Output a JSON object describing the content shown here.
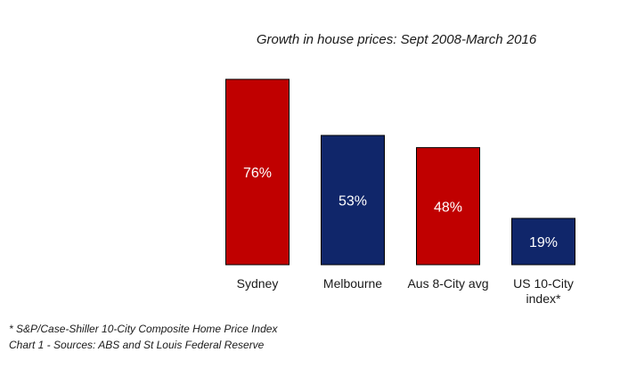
{
  "chart_data": {
    "type": "bar",
    "title": "Growth in house prices: Sept 2008-March 2016",
    "categories": [
      [
        "Sydney"
      ],
      [
        "Melbourne"
      ],
      [
        "Aus 8-City avg"
      ],
      [
        "US 10-City",
        "index*"
      ]
    ],
    "values": [
      76,
      53,
      48,
      19
    ],
    "value_labels": [
      "76%",
      "53%",
      "48%",
      "19%"
    ],
    "unit": "%",
    "colors": [
      "#c00000",
      "#10266a",
      "#c00000",
      "#10266a"
    ],
    "bar_border_color": "#000000",
    "label_color": "#ffffff",
    "ylim": [
      0,
      76
    ],
    "xlabel": "",
    "ylabel": "",
    "grid": false,
    "legend": "none"
  },
  "footnotes": {
    "note1": "* S&P/Case-Shiller 10-City Composite Home Price Index",
    "note2": "Chart 1 - Sources: ABS and St Louis Federal Reserve"
  }
}
